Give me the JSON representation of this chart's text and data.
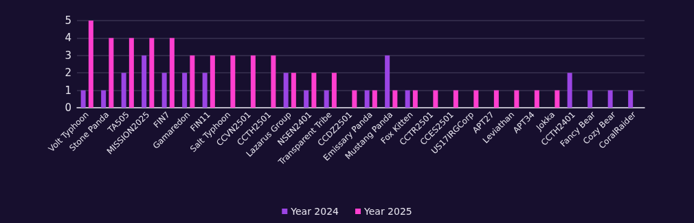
{
  "chart_data": {
    "type": "bar",
    "categories": [
      "Volt Typhoon",
      "Stone Panda",
      "TA505",
      "MISSION2025",
      "FIN7",
      "Gamaredon",
      "FIN11",
      "Salt Typhoon",
      "CCVN2501",
      "CCTH2501",
      "Lazarus Group",
      "NSEN2401",
      "Transparent Tribe",
      "CCDZ2501",
      "Emissary Panda",
      "Mustang Panda",
      "Fox Kitten",
      "CCTR2501",
      "CCES2501",
      "US17IRGCorp",
      "APT27",
      "Leviathan",
      "APT34",
      "Jokka",
      "CCTH2401",
      "Fancy Bear",
      "Cozy Bear",
      "CoralRaider"
    ],
    "series": [
      {
        "name": "Year 2024",
        "color": "#9b45e4",
        "values": [
          1,
          1,
          2,
          3,
          2,
          2,
          2,
          0,
          0,
          0,
          2,
          1,
          1,
          0,
          1,
          3,
          1,
          0,
          0,
          0,
          0,
          0,
          0,
          0,
          2,
          1,
          1,
          1
        ]
      },
      {
        "name": "Year 2025",
        "color": "#ff3fcf",
        "values": [
          5,
          4,
          4,
          4,
          4,
          3,
          3,
          3,
          3,
          3,
          2,
          2,
          2,
          1,
          1,
          1,
          1,
          1,
          1,
          1,
          1,
          1,
          1,
          1,
          0,
          0,
          0,
          0
        ]
      }
    ],
    "ylim": [
      0,
      5
    ],
    "yticks": [
      0,
      1,
      2,
      3,
      4,
      5
    ],
    "grid": "y",
    "legend": "bottom"
  }
}
